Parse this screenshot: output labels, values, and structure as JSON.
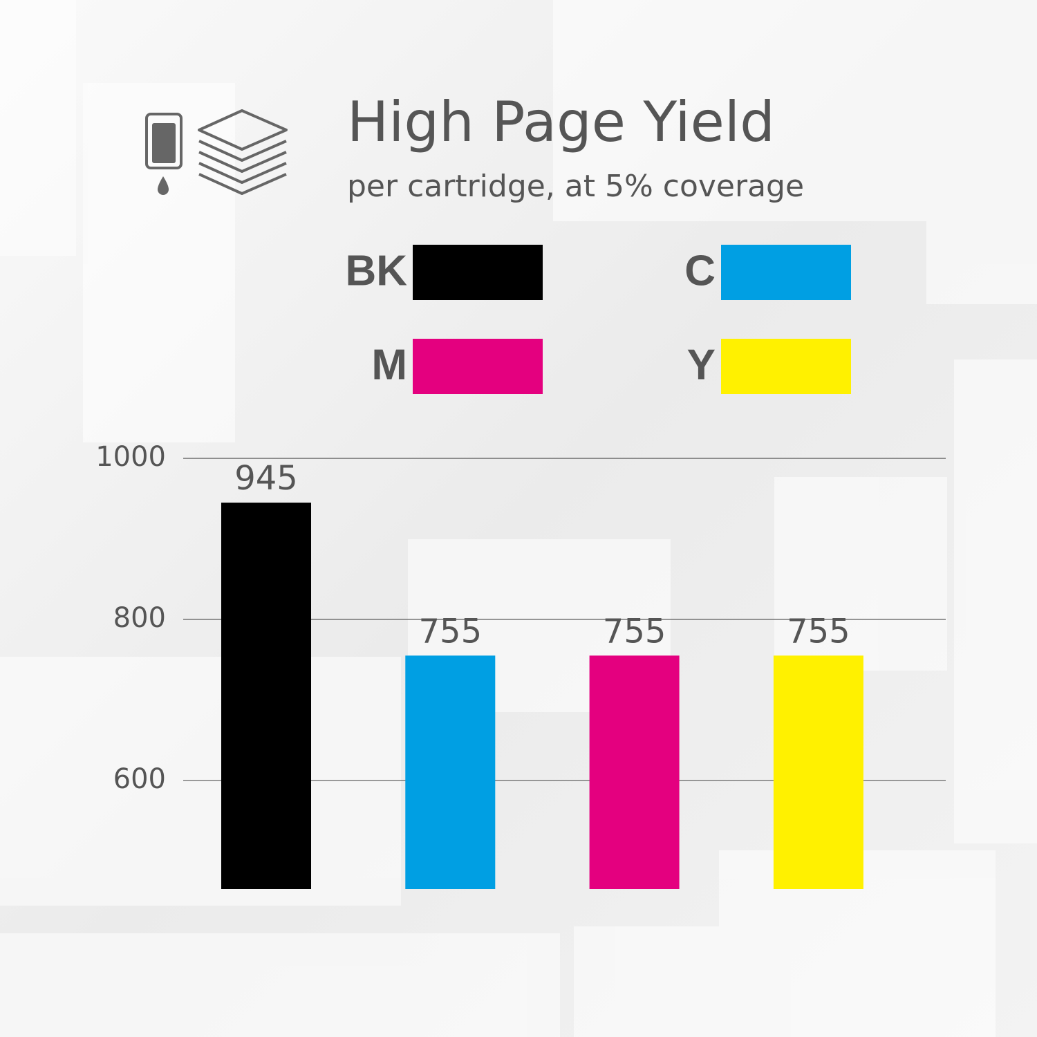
{
  "chart_data": {
    "type": "bar",
    "title": "High Page Yield",
    "subtitle": "per cartridge, at 5% coverage",
    "categories": [
      "BK",
      "C",
      "M",
      "Y"
    ],
    "values": [
      945,
      755,
      755,
      755
    ],
    "colors": [
      "#000000",
      "#009fe3",
      "#e4007f",
      "#fff100"
    ],
    "ylim": [
      465,
      1000
    ],
    "yticks": [
      600,
      800,
      1000
    ],
    "grid": true
  }
}
